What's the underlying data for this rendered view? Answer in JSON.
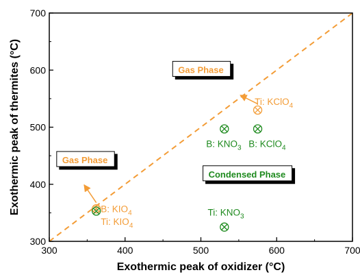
{
  "chart_data": {
    "type": "scatter",
    "xlabel": "Exothermic peak of oxidizer (°C)",
    "ylabel": "Exothermic peak of thermites (°C)",
    "xlim": [
      300,
      700
    ],
    "ylim": [
      300,
      700
    ],
    "xticks": [
      "300",
      "400",
      "500",
      "600",
      "700"
    ],
    "yticks": [
      "300",
      "400",
      "500",
      "600",
      "700"
    ],
    "grid": false,
    "diagonal": {
      "from": [
        300,
        300
      ],
      "to": [
        700,
        700
      ],
      "style": "dashed",
      "color": "#f39c36"
    },
    "colors": {
      "orange": "#f39c36",
      "green": "#1e8a1e"
    },
    "points": [
      {
        "x": 362,
        "y": 357,
        "group": "gas",
        "marker": "circled-x"
      },
      {
        "x": 362,
        "y": 353,
        "group": "condensed",
        "marker": "circled-x"
      },
      {
        "x": 575,
        "y": 530,
        "group": "gas",
        "marker": "circled-x"
      },
      {
        "x": 531,
        "y": 497,
        "group": "condensed",
        "marker": "circled-x"
      },
      {
        "x": 575,
        "y": 497,
        "group": "condensed",
        "marker": "circled-x"
      },
      {
        "x": 531,
        "y": 325,
        "group": "condensed",
        "marker": "circled-x"
      }
    ],
    "labels": [
      {
        "pre": "B: KIO",
        "sub": "4",
        "x": 368,
        "y": 357,
        "group": "gas"
      },
      {
        "pre": "Ti: KIO",
        "sub": "4",
        "x": 368,
        "y": 335,
        "group": "gas"
      },
      {
        "pre": "Ti: KClO",
        "sub": "4",
        "x": 571,
        "y": 545,
        "group": "gas"
      },
      {
        "pre": "B: KNO",
        "sub": "3",
        "x": 507,
        "y": 471,
        "group": "condensed"
      },
      {
        "pre": "B: KClO",
        "sub": "4",
        "x": 563,
        "y": 471,
        "group": "condensed"
      },
      {
        "pre": "Ti: KNO",
        "sub": "3",
        "x": 509,
        "y": 351,
        "group": "condensed"
      }
    ],
    "annotations": [
      {
        "text": "Gas Phase",
        "x": 317,
        "y": 443,
        "group": "gas",
        "arrow": {
          "from": [
            362,
            357
          ],
          "to": [
            346,
            399
          ]
        }
      },
      {
        "text": "Gas Phase",
        "x": 470,
        "y": 601,
        "group": "gas",
        "arrow": {
          "from": [
            575,
            530
          ],
          "to": [
            552,
            556
          ]
        }
      },
      {
        "text": "Condensed Phase",
        "x": 510,
        "y": 418,
        "group": "condensed"
      }
    ]
  }
}
